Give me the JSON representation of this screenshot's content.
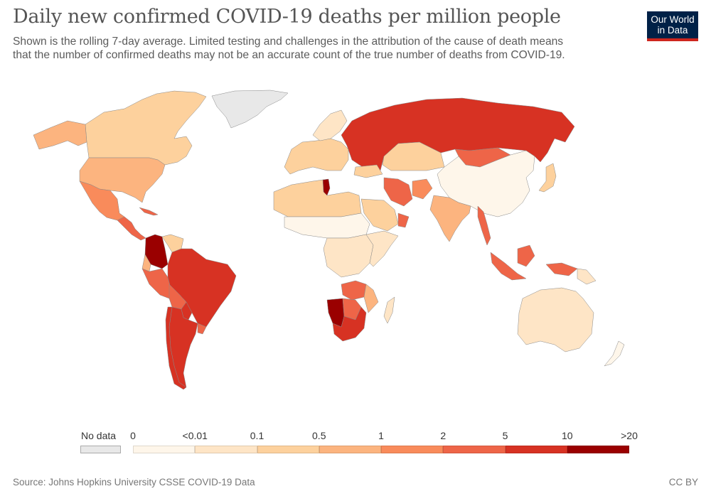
{
  "header": {
    "title": "Daily new confirmed COVID-19 deaths per million people",
    "subtitle_line1": "Shown is the rolling 7-day average. Limited testing and challenges in the attribution of the cause of death means",
    "subtitle_line2": "that the number of confirmed deaths may not be an accurate count of the true number of deaths from COVID-19.",
    "logo_line1": "Our World",
    "logo_line2": "in Data"
  },
  "legend": {
    "no_data_label": "No data",
    "no_data_color": "#e8e8e8",
    "thresholds": [
      "0",
      "<0.01",
      "0.1",
      "0.5",
      "1",
      "2",
      "5",
      "10",
      ">20"
    ],
    "bins": [
      {
        "from": "0",
        "to": "<0.01",
        "color": "#fef6ea"
      },
      {
        "from": "<0.01",
        "to": "0.1",
        "color": "#fee5c6"
      },
      {
        "from": "0.1",
        "to": "0.5",
        "color": "#fdd19d"
      },
      {
        "from": "0.5",
        "to": "1",
        "color": "#fcb47f"
      },
      {
        "from": "1",
        "to": "2",
        "color": "#f98b5b"
      },
      {
        "from": "2",
        "to": "5",
        "color": "#ee6548"
      },
      {
        "from": "5",
        "to": "10",
        "color": "#d73223"
      },
      {
        "from": "10",
        "to": ">20",
        "color": "#9a0000"
      }
    ]
  },
  "chart_data": {
    "type": "choropleth",
    "title": "Daily new confirmed COVID-19 deaths per million people",
    "regions": [
      {
        "name": "Greenland",
        "bin": -1
      },
      {
        "name": "Canada",
        "bin": 2
      },
      {
        "name": "Alaska (USA)",
        "bin": 3
      },
      {
        "name": "USA",
        "bin": 3
      },
      {
        "name": "Mexico",
        "bin": 4
      },
      {
        "name": "Central America",
        "bin": 5
      },
      {
        "name": "Cuba",
        "bin": 5
      },
      {
        "name": "Colombia",
        "bin": 7
      },
      {
        "name": "Venezuela",
        "bin": 2
      },
      {
        "name": "Ecuador",
        "bin": 3
      },
      {
        "name": "Peru",
        "bin": 5
      },
      {
        "name": "Brazil",
        "bin": 6
      },
      {
        "name": "Bolivia",
        "bin": 5
      },
      {
        "name": "Paraguay",
        "bin": 6
      },
      {
        "name": "Argentina",
        "bin": 6
      },
      {
        "name": "Chile",
        "bin": 6
      },
      {
        "name": "Uruguay",
        "bin": 5
      },
      {
        "name": "Russia",
        "bin": 6
      },
      {
        "name": "Kazakhstan",
        "bin": 2
      },
      {
        "name": "Mongolia",
        "bin": 5
      },
      {
        "name": "China",
        "bin": 0
      },
      {
        "name": "Japan",
        "bin": 2
      },
      {
        "name": "India",
        "bin": 3
      },
      {
        "name": "Myanmar",
        "bin": 5
      },
      {
        "name": "Indonesia",
        "bin": 5
      },
      {
        "name": "Australia",
        "bin": 1
      },
      {
        "name": "New Zealand",
        "bin": 0
      },
      {
        "name": "Iran",
        "bin": 5
      },
      {
        "name": "Afghanistan",
        "bin": 4
      },
      {
        "name": "Oman",
        "bin": 5
      },
      {
        "name": "Saudi Arabia",
        "bin": 2
      },
      {
        "name": "Turkey",
        "bin": 2
      },
      {
        "name": "Western Europe",
        "bin": 2
      },
      {
        "name": "Scandinavia",
        "bin": 1
      },
      {
        "name": "Tunisia",
        "bin": 7
      },
      {
        "name": "North Africa",
        "bin": 2
      },
      {
        "name": "Sahel",
        "bin": 0
      },
      {
        "name": "Central Africa",
        "bin": 1
      },
      {
        "name": "East Africa",
        "bin": 1
      },
      {
        "name": "Zambia",
        "bin": 5
      },
      {
        "name": "Namibia",
        "bin": 7
      },
      {
        "name": "Botswana",
        "bin": 5
      },
      {
        "name": "South Africa",
        "bin": 6
      },
      {
        "name": "Mozambique",
        "bin": 3
      },
      {
        "name": "Madagascar",
        "bin": 1
      },
      {
        "name": "Papua New Guinea",
        "bin": 1
      }
    ]
  },
  "footer": {
    "source": "Source: Johns Hopkins University CSSE COVID-19 Data",
    "license": "CC BY"
  }
}
